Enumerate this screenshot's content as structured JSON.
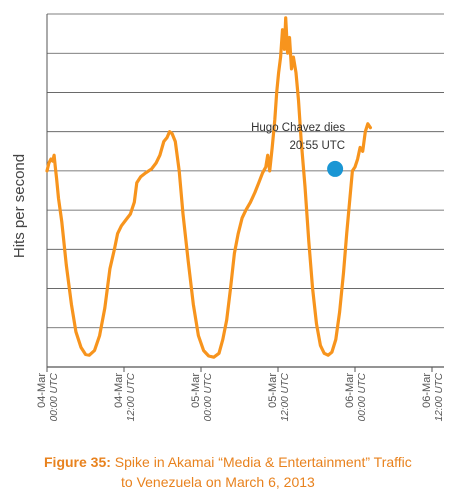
{
  "chart_data": {
    "type": "line",
    "ylabel": "Hits per second",
    "xlabel": "",
    "yticks_labeled": false,
    "grid": true,
    "x_ticks": [
      {
        "date": "04-Mar",
        "time": "00:00 UTC",
        "hour": 0
      },
      {
        "date": "04-Mar",
        "time": "12:00 UTC",
        "hour": 12
      },
      {
        "date": "05-Mar",
        "time": "00:00 UTC",
        "hour": 24
      },
      {
        "date": "05-Mar",
        "time": "12:00 UTC",
        "hour": 36
      },
      {
        "date": "06-Mar",
        "time": "00:00 UTC",
        "hour": 48
      },
      {
        "date": "06-Mar",
        "time": "12:00 UTC",
        "hour": 60
      }
    ],
    "xlim": [
      0,
      60.5
    ],
    "ylim": [
      0,
      9
    ],
    "series": [
      {
        "color": "#f7941d",
        "points": [
          [
            0,
            5.0
          ],
          [
            0.3,
            5.2
          ],
          [
            0.6,
            5.3
          ],
          [
            0.9,
            5.25
          ],
          [
            1.1,
            5.4
          ],
          [
            1.3,
            5.1
          ],
          [
            1.5,
            4.8
          ],
          [
            1.8,
            4.3
          ],
          [
            2.3,
            3.7
          ],
          [
            3,
            2.6
          ],
          [
            3.8,
            1.6
          ],
          [
            4.5,
            0.9
          ],
          [
            5.3,
            0.5
          ],
          [
            6,
            0.32
          ],
          [
            6.6,
            0.3
          ],
          [
            7.4,
            0.42
          ],
          [
            8.2,
            0.8
          ],
          [
            9,
            1.5
          ],
          [
            9.8,
            2.5
          ],
          [
            10.5,
            3.0
          ],
          [
            11,
            3.4
          ],
          [
            11.6,
            3.6
          ],
          [
            12.3,
            3.75
          ],
          [
            13,
            3.9
          ],
          [
            13.6,
            4.2
          ],
          [
            14,
            4.7
          ],
          [
            14.6,
            4.85
          ],
          [
            15.4,
            4.95
          ],
          [
            16.3,
            5.05
          ],
          [
            17,
            5.2
          ],
          [
            17.6,
            5.4
          ],
          [
            18.2,
            5.75
          ],
          [
            18.7,
            5.85
          ],
          [
            19.1,
            6.0
          ],
          [
            19.5,
            5.95
          ],
          [
            20,
            5.75
          ],
          [
            20.6,
            5.0
          ],
          [
            21.2,
            3.9
          ],
          [
            22,
            2.7
          ],
          [
            22.8,
            1.6
          ],
          [
            23.6,
            0.8
          ],
          [
            24.4,
            0.42
          ],
          [
            25.2,
            0.28
          ],
          [
            26,
            0.25
          ],
          [
            26.8,
            0.35
          ],
          [
            27.4,
            0.7
          ],
          [
            28,
            1.2
          ],
          [
            28.6,
            2.0
          ],
          [
            29.2,
            2.9
          ],
          [
            29.8,
            3.4
          ],
          [
            30.4,
            3.8
          ],
          [
            31,
            4.0
          ],
          [
            31.7,
            4.2
          ],
          [
            32.4,
            4.45
          ],
          [
            33,
            4.7
          ],
          [
            33.6,
            4.95
          ],
          [
            34.1,
            5.1
          ],
          [
            34.4,
            5.4
          ],
          [
            34.7,
            5.0
          ],
          [
            35.1,
            5.6
          ],
          [
            35.5,
            6.3
          ],
          [
            35.8,
            7.0
          ],
          [
            36.1,
            7.5
          ],
          [
            36.4,
            7.9
          ],
          [
            36.7,
            8.6
          ],
          [
            37,
            8.1
          ],
          [
            37.2,
            8.9
          ],
          [
            37.5,
            8.0
          ],
          [
            37.8,
            8.4
          ],
          [
            38.1,
            7.6
          ],
          [
            38.4,
            7.9
          ],
          [
            38.8,
            7.5
          ],
          [
            39.2,
            6.8
          ],
          [
            39.6,
            5.8
          ],
          [
            40.2,
            4.6
          ],
          [
            40.8,
            3.2
          ],
          [
            41.4,
            2.0
          ],
          [
            42,
            1.1
          ],
          [
            42.6,
            0.55
          ],
          [
            43.2,
            0.35
          ],
          [
            43.8,
            0.3
          ],
          [
            44.4,
            0.38
          ],
          [
            45,
            0.7
          ],
          [
            45.6,
            1.4
          ],
          [
            46.2,
            2.4
          ],
          [
            46.7,
            3.4
          ],
          [
            47.2,
            4.3
          ],
          [
            47.6,
            5.0
          ],
          [
            48,
            5.1
          ],
          [
            48.4,
            5.3
          ],
          [
            48.8,
            5.6
          ],
          [
            49.2,
            5.5
          ],
          [
            49.6,
            6.0
          ],
          [
            50,
            6.2
          ],
          [
            50.4,
            6.1
          ]
        ]
      }
    ],
    "annotations": [
      {
        "text_lines": [
          "Hugo Chavez dies",
          "20:55 UTC"
        ],
        "hour": 44.9,
        "value": 5.05,
        "marker_color": "#1a96d4"
      }
    ]
  },
  "caption": {
    "label": "Figure 35:",
    "line1": "Spike in Akamai “Media & Entertainment” Traffic",
    "line2": "to Venezuela on March 6, 2013"
  },
  "colors": {
    "line": "#f7941d",
    "marker": "#1a96d4",
    "caption": "#e8821e",
    "grid": "#555555"
  }
}
